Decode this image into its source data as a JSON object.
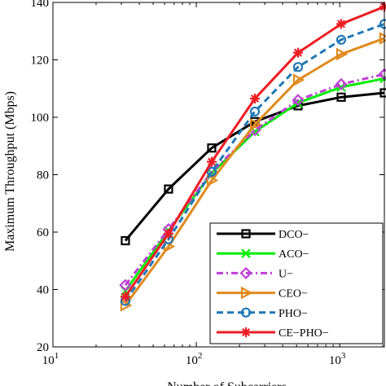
{
  "chart_data": {
    "type": "line",
    "title": "",
    "xlabel": "Number of Subcarriers",
    "ylabel": "Maximum Throughput (Mbps)",
    "xscale": "log",
    "xlim": [
      10,
      2048
    ],
    "ylim": [
      20,
      140
    ],
    "xticks": [
      10,
      100,
      1000
    ],
    "xtick_labels": [
      {
        "base": "10",
        "exp": "1"
      },
      {
        "base": "10",
        "exp": "2"
      },
      {
        "base": "10",
        "exp": "3"
      }
    ],
    "yticks": [
      20,
      40,
      60,
      80,
      100,
      120,
      140
    ],
    "ytick_labels": [
      "20",
      "40",
      "60",
      "80",
      "100",
      "120",
      "140"
    ],
    "grid": false,
    "legend_position": "bottom-right",
    "x": [
      32,
      64,
      128,
      256,
      512,
      1024,
      2048
    ],
    "series": [
      {
        "name": "DCO−",
        "values": [
          57,
          75,
          89.3,
          98.5,
          104,
          107,
          108.5
        ],
        "color": "#000000",
        "dash": "solid",
        "marker": "square"
      },
      {
        "name": "ACO−",
        "values": [
          39.5,
          60.5,
          80.5,
          95,
          105,
          110.5,
          113.5
        ],
        "color": "#00ee00",
        "dash": "solid",
        "marker": "x"
      },
      {
        "name": "U−",
        "values": [
          41.5,
          61,
          81,
          95.5,
          106,
          111.5,
          115
        ],
        "color": "#bf3fd6",
        "dash": "dashdot",
        "marker": "diamond"
      },
      {
        "name": "CEO−",
        "values": [
          34.5,
          55,
          78,
          97.5,
          113,
          122,
          127.5
        ],
        "color": "#e08a1e",
        "dash": "solid",
        "marker": "triangle-right"
      },
      {
        "name": "PHO−",
        "values": [
          36,
          57.5,
          81,
          102,
          117.5,
          127,
          132.5
        ],
        "color": "#1f77b4",
        "dash": "dashed",
        "marker": "circle"
      },
      {
        "name": "CE−PHO−",
        "values": [
          37.5,
          59.5,
          84.5,
          106.5,
          122.5,
          132.5,
          138.5
        ],
        "color": "#ee1c24",
        "dash": "solid",
        "marker": "star"
      }
    ]
  }
}
